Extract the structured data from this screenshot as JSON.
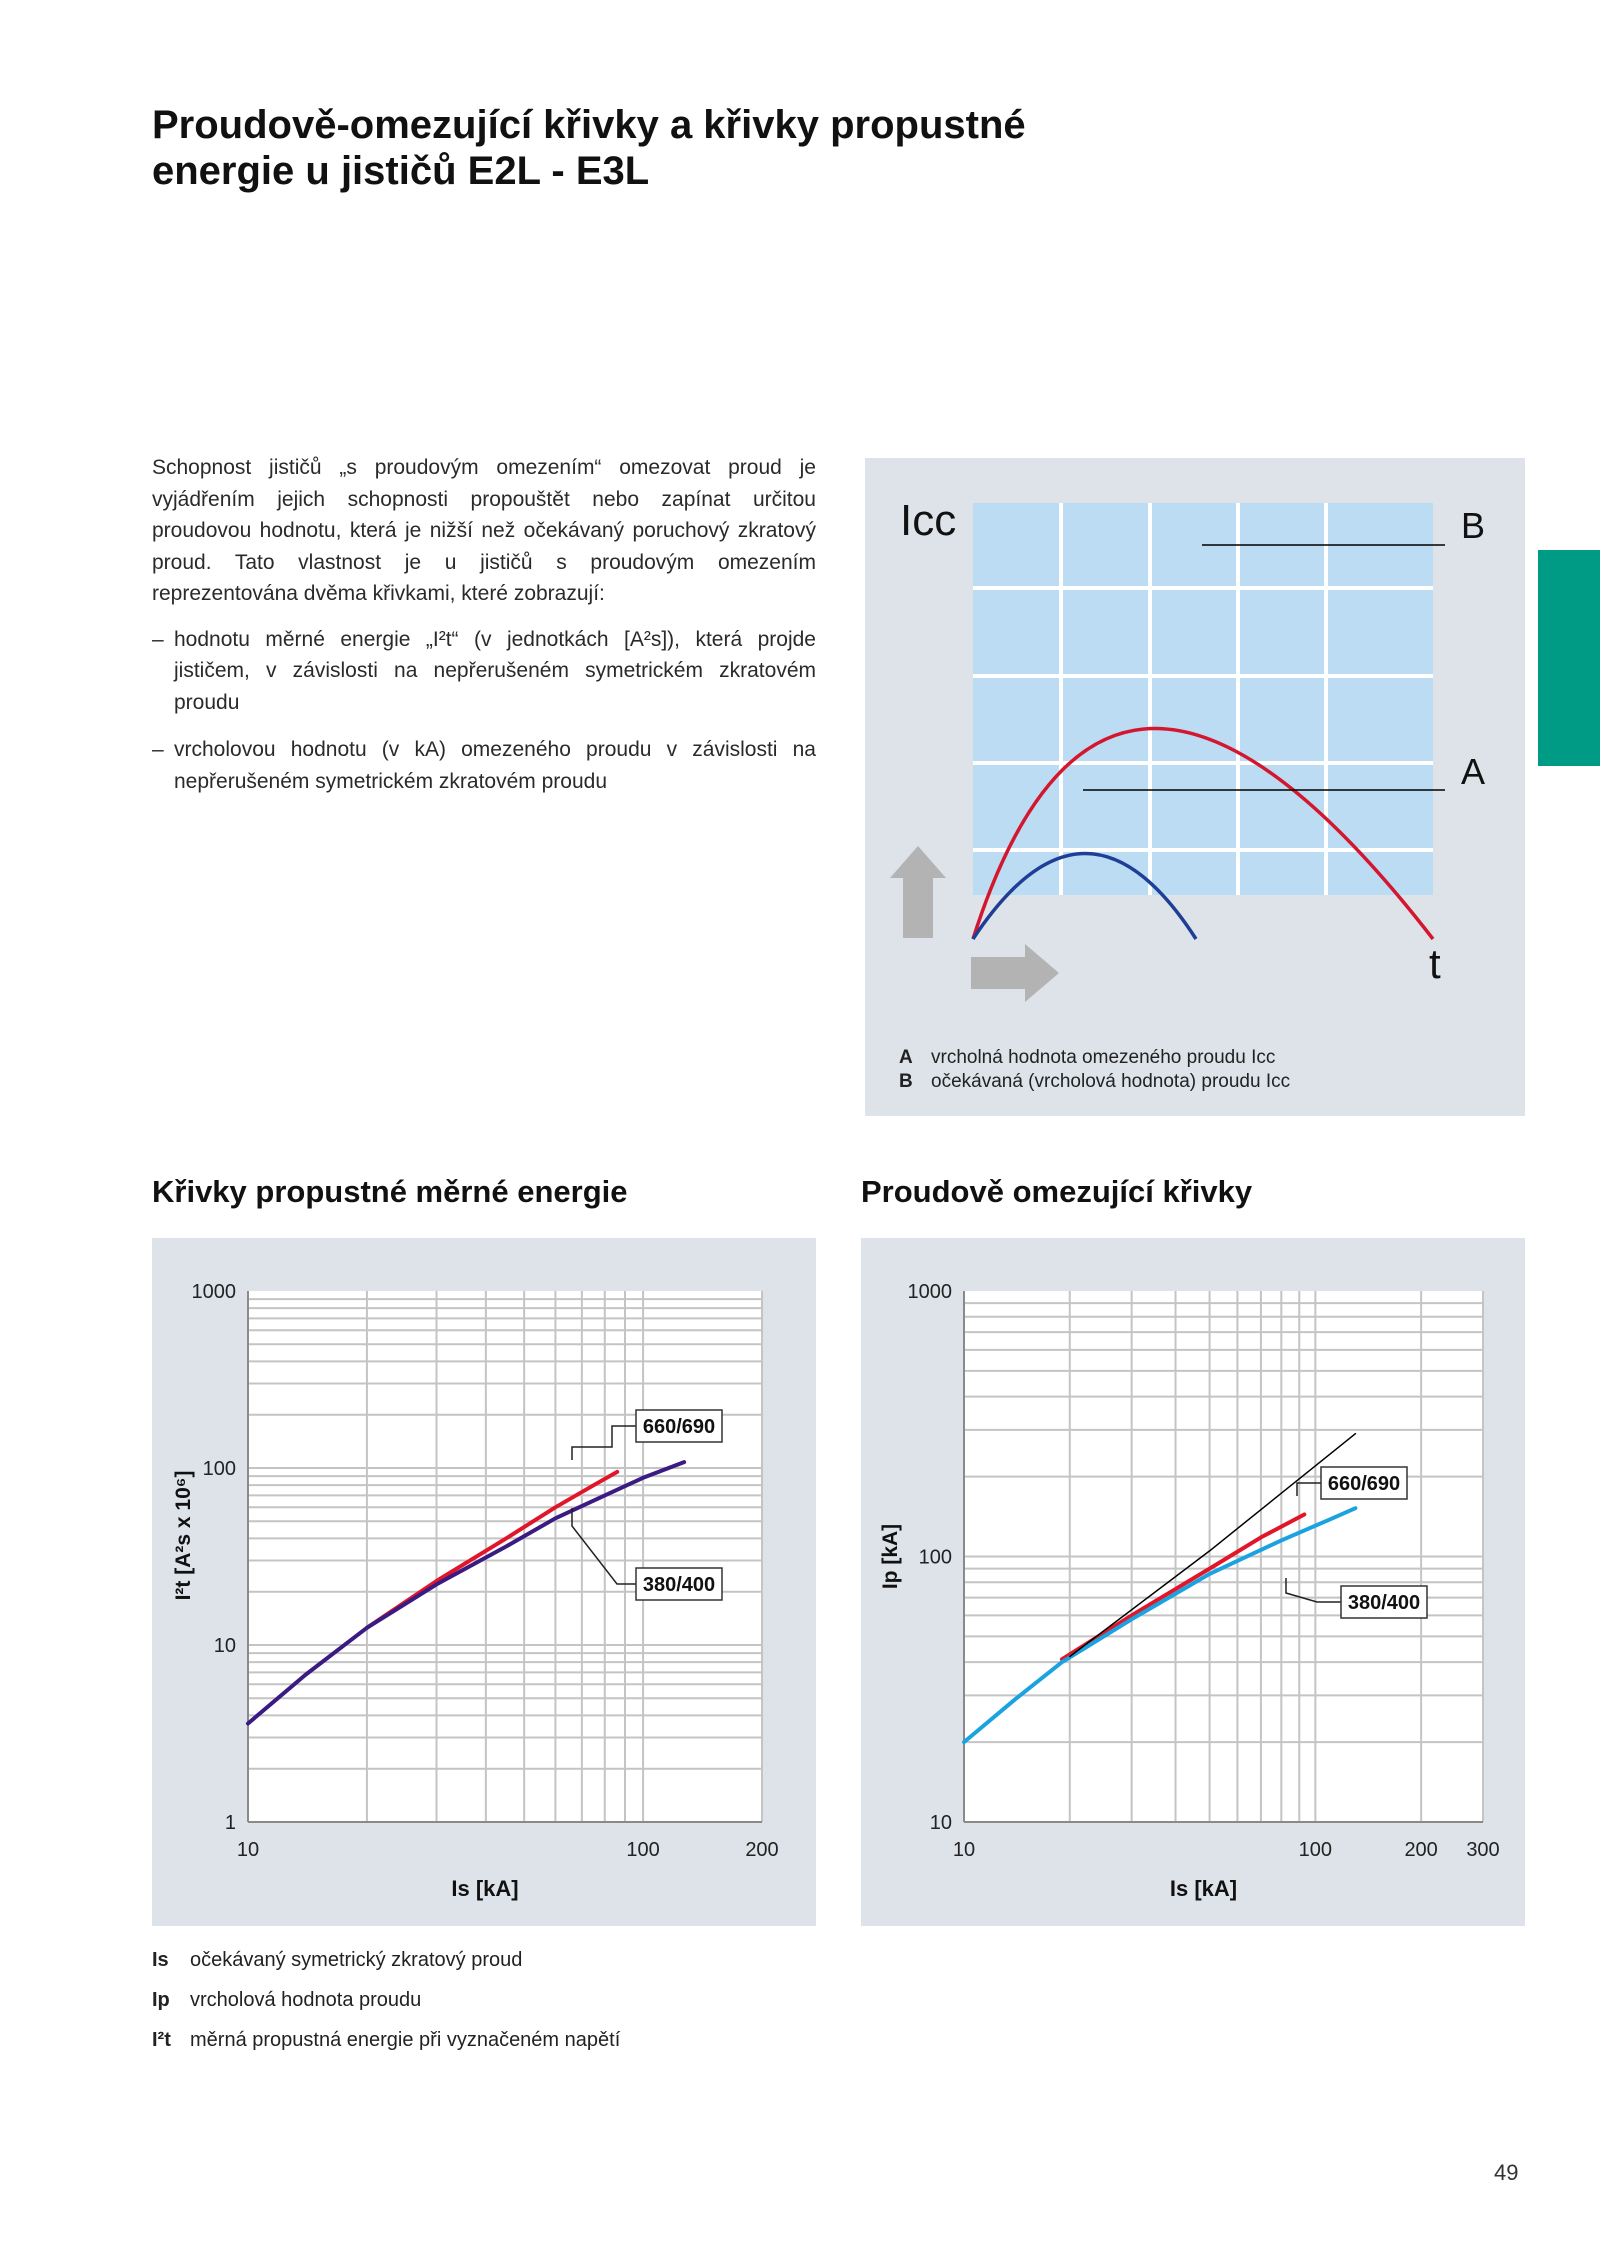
{
  "title": {
    "line1": "Proudově-omezující křivky a křivky propustné",
    "line2": "energie u jističů E2L - E3L"
  },
  "intro": {
    "paragraph": "Schopnost jističů „s proudovým omezením“ omezovat proud je vyjádřením jejich schopnosti propouštět nebo zapínat určitou proudovou hodnotu, která je nižší než očekávaný poruchový zkratový proud. Tato vlastnost je u jističů s proudovým omezením reprezentována dvěma křivkami, které zobrazují:",
    "bullets": [
      "hodnotu měrné energie „I²t“ (v jednotkách [A²s]), která projde jističem, v závislosti na nepřerušeném symetrickém zkratovém proudu",
      "vrcholovou hodnotu (v kA) omezeného proudu v závislosti na nepřerušeném symetrickém zkratovém proudu"
    ],
    "dash": "–"
  },
  "diagram": {
    "y_label": "Icc",
    "x_label": "t",
    "label_b": "B",
    "label_a": "A",
    "legend": [
      {
        "key": "A",
        "text": "vrcholná hodnota omezeného proudu Icc"
      },
      {
        "key": "B",
        "text": "očekávaná (vrcholová hodnota) proudu Icc"
      }
    ],
    "colors": {
      "background": "#bcdcf4",
      "curve_b": "#d3172e",
      "curve_a": "#1f3f96",
      "arrow": "#b3b3b3"
    }
  },
  "headings": {
    "left": "Křivky propustné měrné energie",
    "right": "Proudově omezující křivky"
  },
  "chart_data": [
    {
      "type": "line",
      "x_scale": "log",
      "y_scale": "log",
      "xlim": [
        10,
        200
      ],
      "ylim": [
        1,
        1000
      ],
      "x_ticks": [
        "10",
        "100",
        "200"
      ],
      "y_ticks": [
        "1",
        "10",
        "100",
        "1000"
      ],
      "xlabel": "Is [kA]",
      "ylabel": "I²t [A²s x 10⁶]",
      "series": [
        {
          "name": "660/690",
          "color": "#e1162b",
          "x": [
            20,
            30,
            45,
            60,
            75,
            86
          ],
          "y": [
            12.5,
            23,
            40,
            60,
            80,
            95
          ]
        },
        {
          "name": "380/400",
          "color": "#3b1a82",
          "x": [
            10,
            14,
            20,
            30,
            45,
            60,
            80,
            100,
            127
          ],
          "y": [
            3.6,
            6.8,
            12.5,
            22,
            36,
            52,
            70,
            88,
            108
          ]
        }
      ],
      "annotations": [
        "660/690",
        "380/400"
      ]
    },
    {
      "type": "line",
      "x_scale": "log",
      "y_scale": "log",
      "xlim": [
        10,
        300
      ],
      "ylim": [
        10,
        1000
      ],
      "x_ticks": [
        "10",
        "100",
        "200",
        "300"
      ],
      "y_ticks": [
        "10",
        "100",
        "1000"
      ],
      "xlabel": "Is [kA]",
      "ylabel": "Ip [kA]",
      "series": [
        {
          "name": "660/690",
          "color": "#e1162b",
          "x": [
            19,
            30,
            50,
            70,
            93
          ],
          "y": [
            41,
            60,
            90,
            118,
            144
          ]
        },
        {
          "name": "380/400",
          "color": "#1aa3e0",
          "x": [
            10,
            14,
            19,
            30,
            50,
            80,
            110,
            130
          ],
          "y": [
            20,
            29,
            40,
            58,
            86,
            115,
            138,
            152
          ]
        },
        {
          "name": "",
          "color": "#000000",
          "x": [
            20,
            50,
            130
          ],
          "y": [
            42,
            105,
            290
          ]
        }
      ],
      "annotations": [
        "660/690",
        "380/400"
      ]
    }
  ],
  "footnotes": [
    {
      "key": "Is",
      "text": "očekávaný symetrický zkratový proud"
    },
    {
      "key": "Ip",
      "text": "vrcholová hodnota proudu"
    },
    {
      "key": "I²t",
      "text": "měrná propustná energie při vyznačeném napětí"
    }
  ],
  "page_number": "49"
}
